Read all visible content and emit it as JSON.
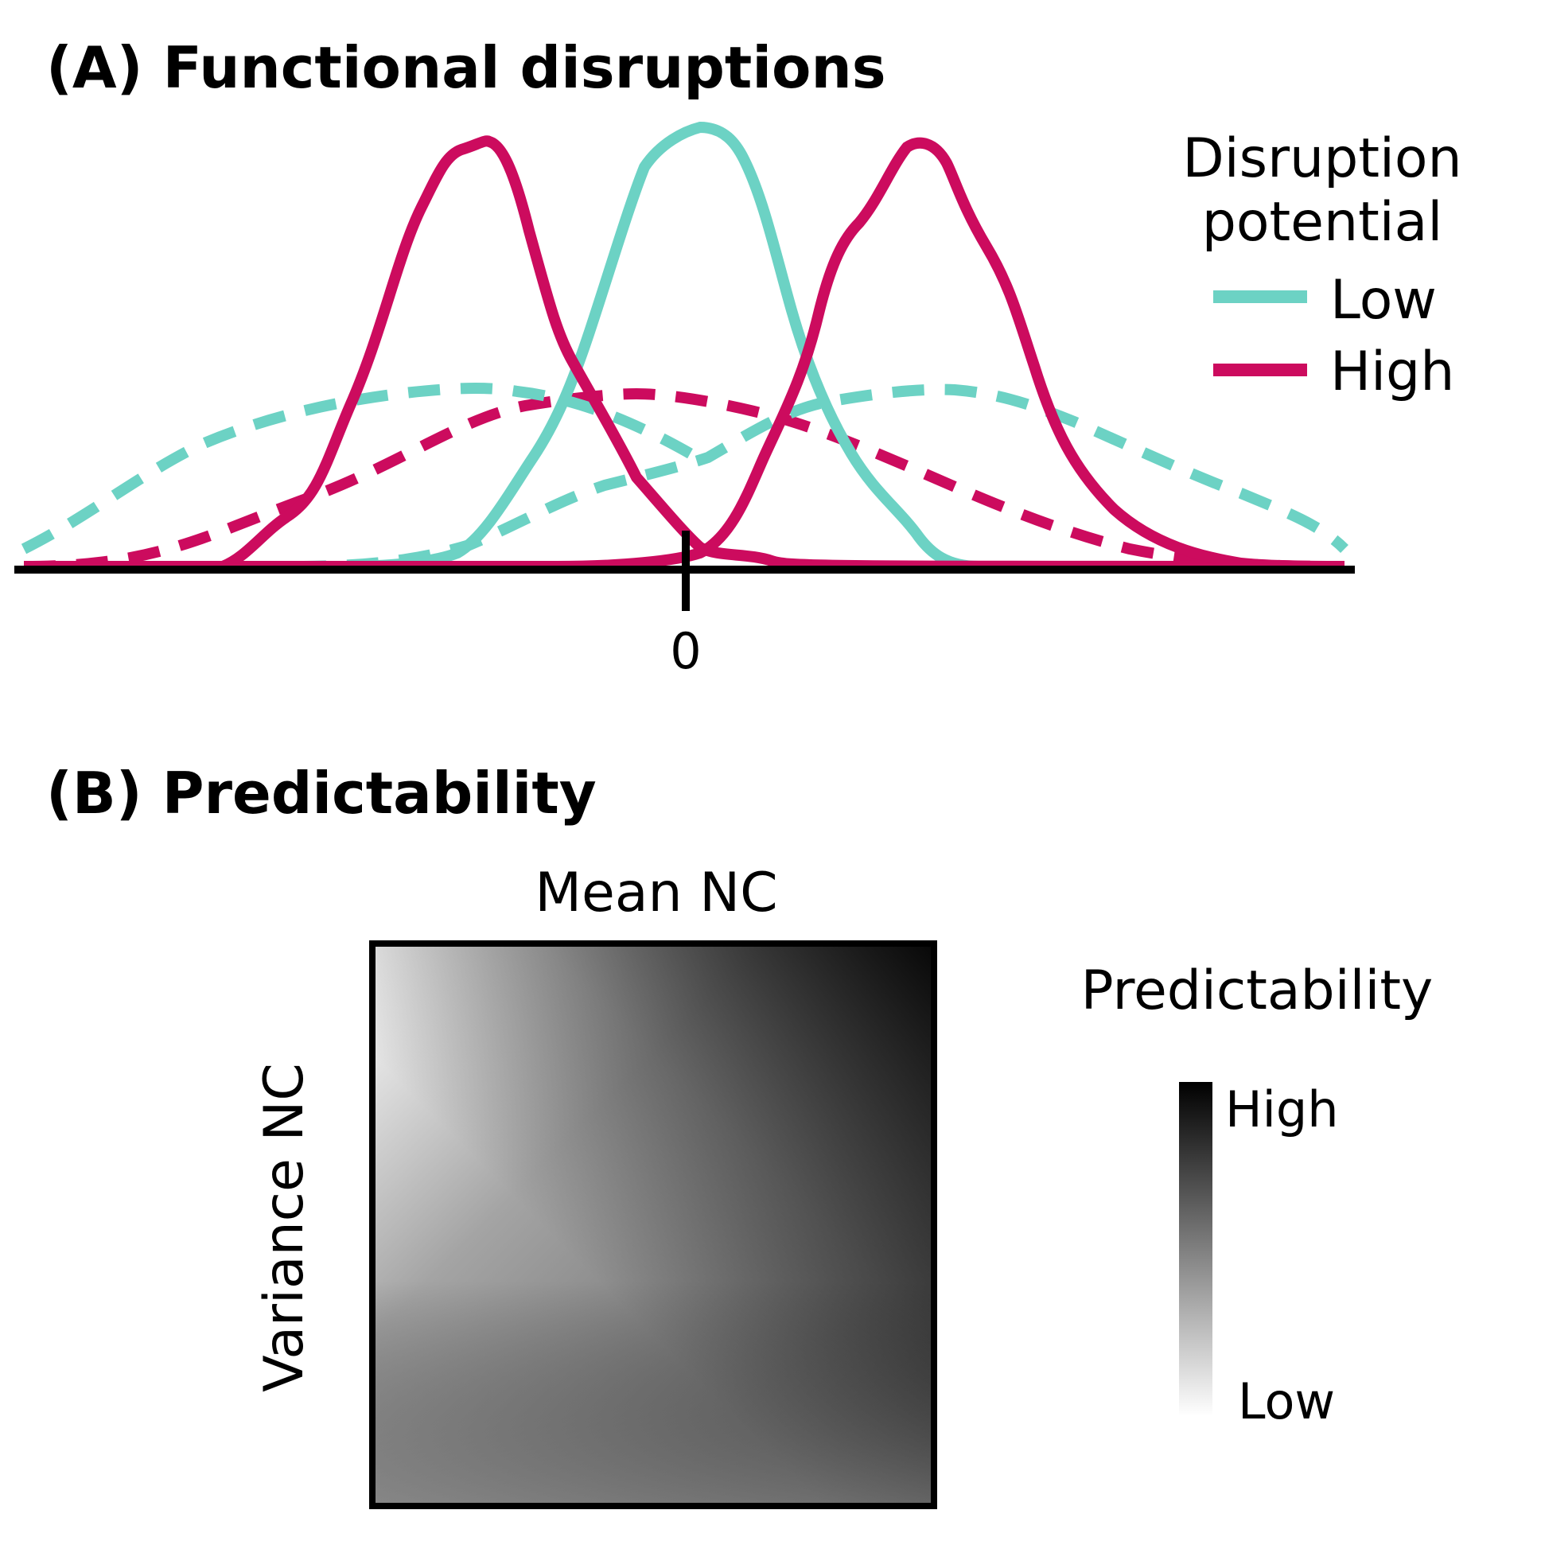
{
  "panel_a": {
    "title": "(A) Functional disruptions",
    "tick_label": "0",
    "legend": {
      "title_line1": "Disruption",
      "title_line2": "potential",
      "items": [
        {
          "label": "Low",
          "color": "#6cd2c4"
        },
        {
          "label": "High",
          "color": "#cc0b5e"
        }
      ]
    }
  },
  "panel_b": {
    "title": "(B) Predictability",
    "x_label": "Mean NC",
    "y_label": "Variance NC",
    "colorbar": {
      "title": "Predictability",
      "high_label": "High",
      "low_label": "Low"
    }
  },
  "colors": {
    "low": "#6cd2c4",
    "high": "#cc0b5e",
    "axis": "#000000"
  }
}
